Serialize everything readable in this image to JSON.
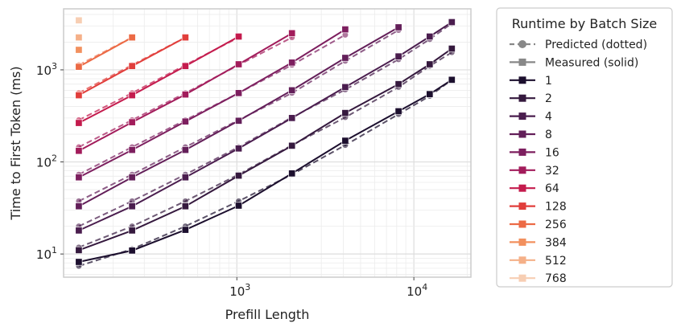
{
  "chart_data": {
    "type": "line",
    "title": "",
    "xlabel": "Prefill Length",
    "ylabel": "Time to First Token (ms)",
    "xscale": "log",
    "yscale": "log",
    "xlim": [
      105,
      21000
    ],
    "ylim": [
      5.6,
      4600
    ],
    "grid": true,
    "x_tick_labels": [
      {
        "base": "10",
        "exp": "3",
        "value": 1000
      },
      {
        "base": "10",
        "exp": "4",
        "value": 10000
      }
    ],
    "y_tick_labels": [
      {
        "base": "10",
        "exp": "1",
        "value": 10
      },
      {
        "base": "10",
        "exp": "2",
        "value": 100
      },
      {
        "base": "10",
        "exp": "3",
        "value": 1000
      }
    ],
    "legend": {
      "title": "Runtime by Batch Size",
      "placement": "outside-right",
      "style_entries": [
        {
          "label": "Predicted (dotted)",
          "marker": "circle",
          "dash": true
        },
        {
          "label": "Measured (solid)",
          "marker": "square",
          "dash": false
        }
      ]
    },
    "series": [
      {
        "name": "1",
        "color": "#1c0f2e",
        "measured": [
          [
            128,
            8.2
          ],
          [
            256,
            10.9
          ],
          [
            512,
            18.3
          ],
          [
            1024,
            33.5
          ],
          [
            2048,
            75
          ],
          [
            4096,
            170
          ],
          [
            8192,
            355
          ],
          [
            12288,
            545
          ],
          [
            16384,
            780
          ]
        ],
        "predicted": [
          [
            128,
            7.4
          ],
          [
            256,
            11.3
          ],
          [
            512,
            20
          ],
          [
            1024,
            37.5
          ],
          [
            2048,
            73
          ],
          [
            4096,
            152
          ],
          [
            8192,
            330
          ],
          [
            12288,
            520
          ],
          [
            16384,
            780
          ]
        ]
      },
      {
        "name": "2",
        "color": "#35193e",
        "measured": [
          [
            128,
            11
          ],
          [
            256,
            18
          ],
          [
            512,
            33
          ],
          [
            1024,
            71
          ],
          [
            2048,
            150
          ],
          [
            4096,
            340
          ],
          [
            8192,
            700
          ],
          [
            12288,
            1150
          ],
          [
            16384,
            1700
          ]
        ],
        "predicted": [
          [
            128,
            11.8
          ],
          [
            256,
            20
          ],
          [
            512,
            37.5
          ],
          [
            1024,
            73
          ],
          [
            2048,
            152
          ],
          [
            4096,
            305
          ],
          [
            8192,
            650
          ],
          [
            12288,
            1100
          ],
          [
            16384,
            1550
          ]
        ]
      },
      {
        "name": "4",
        "color": "#4a1d4e",
        "measured": [
          [
            128,
            18
          ],
          [
            256,
            33
          ],
          [
            512,
            68
          ],
          [
            1024,
            140
          ],
          [
            2048,
            300
          ],
          [
            4096,
            650
          ],
          [
            8192,
            1400
          ],
          [
            12288,
            2300
          ],
          [
            16384,
            3300
          ]
        ],
        "predicted": [
          [
            128,
            20
          ],
          [
            256,
            37.5
          ],
          [
            512,
            73
          ],
          [
            1024,
            145
          ],
          [
            2048,
            305
          ],
          [
            4096,
            610
          ],
          [
            8192,
            1300
          ],
          [
            12288,
            2150
          ],
          [
            16384,
            3200
          ]
        ]
      },
      {
        "name": "8",
        "color": "#631f59",
        "measured": [
          [
            128,
            33
          ],
          [
            256,
            68
          ],
          [
            512,
            135
          ],
          [
            1024,
            280
          ],
          [
            2048,
            600
          ],
          [
            4096,
            1350
          ],
          [
            8192,
            2900
          ]
        ],
        "predicted": [
          [
            128,
            37.5
          ],
          [
            256,
            73
          ],
          [
            512,
            145
          ],
          [
            1024,
            285
          ],
          [
            2048,
            560
          ],
          [
            4096,
            1250
          ],
          [
            8192,
            2700
          ]
        ]
      },
      {
        "name": "16",
        "color": "#7d1f5f",
        "measured": [
          [
            128,
            68
          ],
          [
            256,
            135
          ],
          [
            512,
            275
          ],
          [
            1024,
            560
          ],
          [
            2048,
            1200
          ],
          [
            4096,
            2750
          ]
        ],
        "predicted": [
          [
            128,
            73
          ],
          [
            256,
            145
          ],
          [
            512,
            285
          ],
          [
            1024,
            560
          ],
          [
            2048,
            1130
          ],
          [
            4096,
            2400
          ]
        ]
      },
      {
        "name": "32",
        "color": "#a21c5b",
        "measured": [
          [
            128,
            132
          ],
          [
            256,
            270
          ],
          [
            512,
            540
          ],
          [
            1024,
            1150
          ],
          [
            2048,
            2500
          ]
        ],
        "predicted": [
          [
            128,
            145
          ],
          [
            256,
            285
          ],
          [
            512,
            560
          ],
          [
            1024,
            1130
          ],
          [
            2048,
            2250
          ]
        ]
      },
      {
        "name": "64",
        "color": "#c41b4d",
        "measured": [
          [
            128,
            265
          ],
          [
            256,
            530
          ],
          [
            512,
            1100
          ],
          [
            1024,
            2300
          ]
        ],
        "predicted": [
          [
            128,
            285
          ],
          [
            256,
            560
          ],
          [
            512,
            1130
          ],
          [
            1024,
            2250
          ]
        ]
      },
      {
        "name": "128",
        "color": "#e13e3b",
        "measured": [
          [
            128,
            530
          ],
          [
            256,
            1100
          ],
          [
            512,
            2250
          ]
        ],
        "predicted": [
          [
            128,
            560
          ],
          [
            256,
            1130
          ],
          [
            512,
            2250
          ]
        ]
      },
      {
        "name": "256",
        "color": "#ec6a45",
        "measured": [
          [
            128,
            1080
          ],
          [
            256,
            2250
          ]
        ],
        "predicted": [
          [
            128,
            1130
          ],
          [
            256,
            2250
          ]
        ]
      },
      {
        "name": "384",
        "color": "#f2905e",
        "measured": [
          [
            128,
            1650
          ]
        ],
        "predicted": [
          [
            128,
            1680
          ]
        ]
      },
      {
        "name": "512",
        "color": "#f5b088",
        "measured": [
          [
            128,
            2250
          ]
        ],
        "predicted": [
          [
            128,
            2250
          ]
        ]
      },
      {
        "name": "768",
        "color": "#f7ceb3",
        "measured": [
          [
            128,
            3450
          ]
        ],
        "predicted": [
          [
            128,
            3400
          ]
        ]
      }
    ]
  }
}
